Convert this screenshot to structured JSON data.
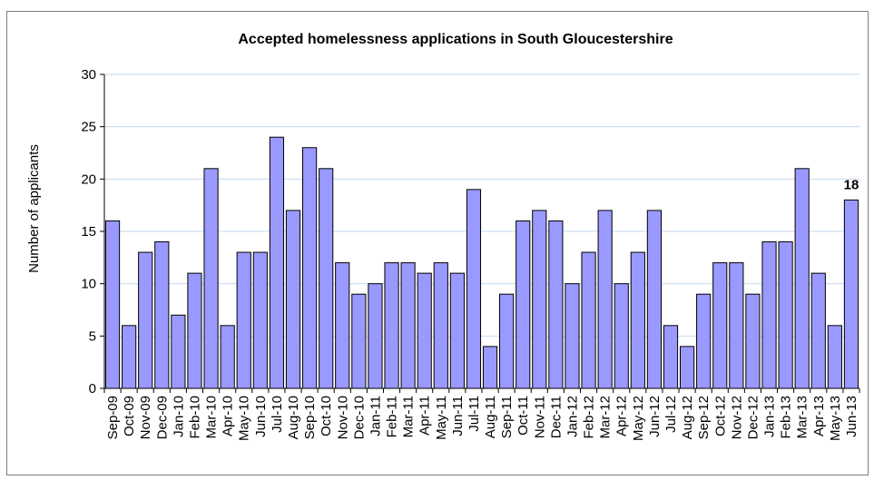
{
  "chart_data": {
    "type": "bar",
    "title": "Accepted homelessness applications in South Gloucestershire",
    "ylabel": "Number of applicants",
    "xlabel": "",
    "ylim": [
      0,
      30
    ],
    "yticks": [
      0,
      5,
      10,
      15,
      20,
      25,
      30
    ],
    "grid": true,
    "bar_color": "#9999ff",
    "bar_edge_color": "#000000",
    "grid_color": "#c6d9f0",
    "categories": [
      "Sep-09",
      "Oct-09",
      "Nov-09",
      "Dec-09",
      "Jan-10",
      "Feb-10",
      "Mar-10",
      "Apr-10",
      "May-10",
      "Jun-10",
      "Jul-10",
      "Aug-10",
      "Sep-10",
      "Oct-10",
      "Nov-10",
      "Dec-10",
      "Jan-11",
      "Feb-11",
      "Mar-11",
      "Apr-11",
      "May-11",
      "Jun-11",
      "Jul-11",
      "Aug-11",
      "Sep-11",
      "Oct-11",
      "Nov-11",
      "Dec-11",
      "Jan-12",
      "Feb-12",
      "Mar-12",
      "Apr-12",
      "May-12",
      "Jun-12",
      "Jul-12",
      "Aug-12",
      "Sep-12",
      "Oct-12",
      "Nov-12",
      "Dec-12",
      "Jan-13",
      "Feb-13",
      "Mar-13",
      "Apr-13",
      "May-13",
      "Jun-13"
    ],
    "values": [
      16,
      6,
      13,
      14,
      7,
      11,
      21,
      6,
      13,
      13,
      24,
      17,
      23,
      21,
      12,
      9,
      10,
      12,
      12,
      11,
      12,
      11,
      19,
      4,
      9,
      16,
      17,
      16,
      10,
      13,
      17,
      10,
      13,
      17,
      6,
      4,
      9,
      12,
      12,
      9,
      14,
      14,
      21,
      11,
      6,
      18
    ],
    "annotations": [
      {
        "category": "Jun-13",
        "text": "18"
      }
    ]
  }
}
